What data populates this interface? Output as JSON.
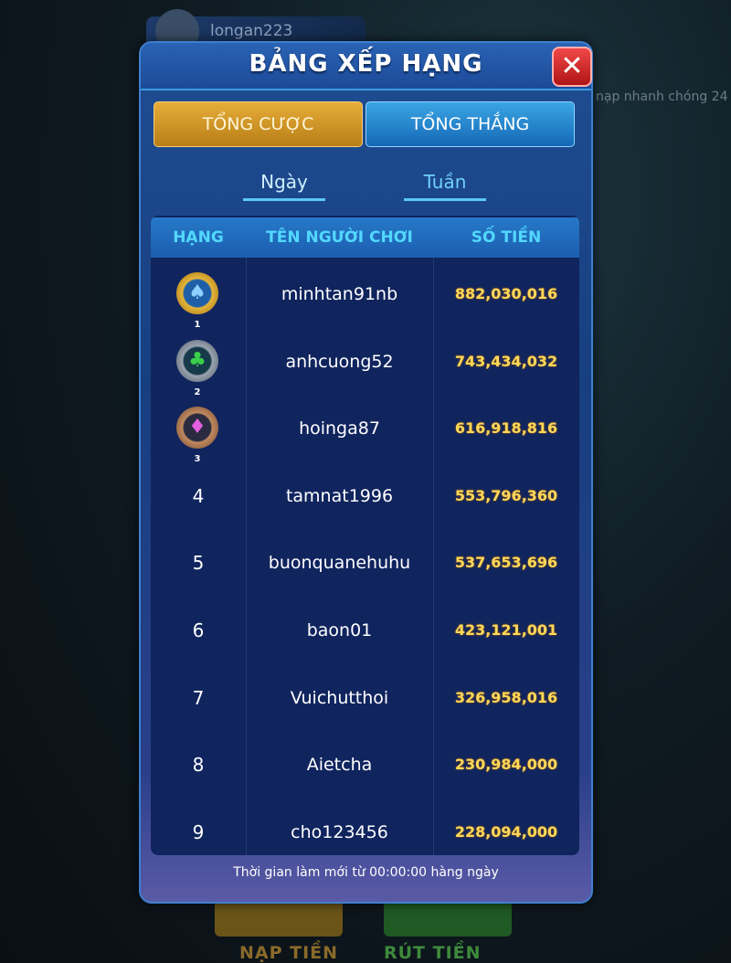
{
  "background": {
    "username": "longan223",
    "marquee": "nạp nhanh chóng 24",
    "deposit_label": "NẠP TIỀN",
    "withdraw_label": "RÚT TIỀN"
  },
  "dialog": {
    "title": "BẢNG XẾP HẠNG",
    "close_label": "✕",
    "tabs": [
      {
        "label": "TỔNG CƯỢC",
        "active": true
      },
      {
        "label": "TỔNG THẮNG",
        "active": false
      }
    ],
    "period_tabs": [
      {
        "label": "Ngày",
        "active": true
      },
      {
        "label": "Tuần",
        "active": false
      }
    ],
    "columns": [
      "HẠNG",
      "TÊN NGƯỜI CHƠI",
      "SỐ TIỀN"
    ],
    "rows": [
      {
        "rank": "1",
        "medal": "gold-spade",
        "name": "minhtan91nb",
        "amount": "882,030,016"
      },
      {
        "rank": "2",
        "medal": "silver-club",
        "name": "anhcuong52",
        "amount": "743,434,032"
      },
      {
        "rank": "3",
        "medal": "bronze-diamond",
        "name": "hoinga87",
        "amount": "616,918,816"
      },
      {
        "rank": "4",
        "name": "tamnat1996",
        "amount": "553,796,360"
      },
      {
        "rank": "5",
        "name": "buonquanehuhu",
        "amount": "537,653,696"
      },
      {
        "rank": "6",
        "name": "baon01",
        "amount": "423,121,001"
      },
      {
        "rank": "7",
        "name": "Vuichutthoi",
        "amount": "326,958,016"
      },
      {
        "rank": "8",
        "name": "Aietcha",
        "amount": "230,984,000"
      },
      {
        "rank": "9",
        "name": "cho123456",
        "amount": "228,094,000"
      }
    ],
    "footer": "Thời gian làm mới từ 00:00:00 hàng ngày",
    "colors": {
      "amount": "#ffd85a",
      "header_text": "#52d8ff",
      "active_tab": "#e6ad3a"
    }
  }
}
